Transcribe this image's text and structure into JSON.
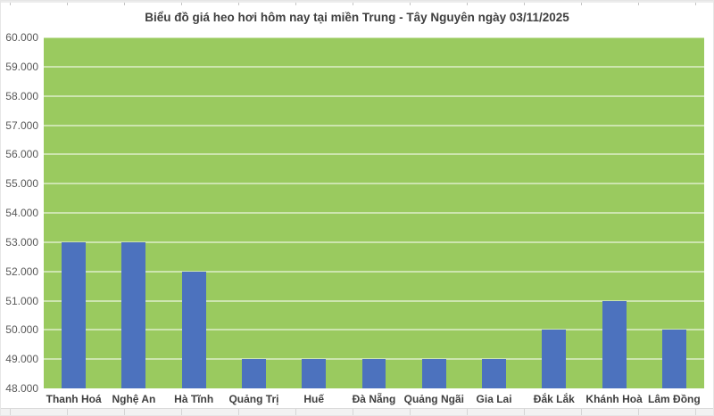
{
  "chart_data": {
    "type": "bar",
    "title": "Biểu đồ giá heo hơi hôm nay tại miền Trung - Tây Nguyên ngày 03/11/2025",
    "categories": [
      "Thanh Hoá",
      "Nghệ An",
      "Hà Tĩnh",
      "Quảng Trị",
      "Huế",
      "Đà Nẵng",
      "Quảng Ngãi",
      "Gia Lai",
      "Đắk Lắk",
      "Khánh Hoà",
      "Lâm Đồng"
    ],
    "values": [
      53000,
      53000,
      52000,
      49000,
      49000,
      49000,
      49000,
      49000,
      50000,
      51000,
      50000
    ],
    "y_tick_labels": [
      "48.000",
      "49.000",
      "50.000",
      "51.000",
      "52.000",
      "53.000",
      "54.000",
      "55.000",
      "56.000",
      "57.000",
      "58.000",
      "59.000",
      "60.000"
    ],
    "ylim": [
      48000,
      60000
    ],
    "y_step": 1000,
    "xlabel": "",
    "ylabel": "",
    "grid": true,
    "legend": "none",
    "colors": {
      "bar": "#4c72be",
      "plot_background": "#9aca5f",
      "gridline": "rgba(255,255,255,0.5)",
      "title_text": "#3f3f3f",
      "axis_tick_text": "#595959",
      "category_text": "#3f3f3f"
    }
  }
}
